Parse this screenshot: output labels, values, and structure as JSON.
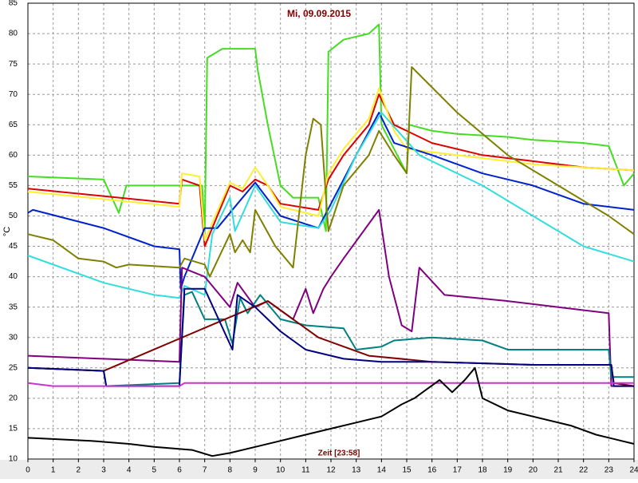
{
  "chart_data": {
    "type": "line",
    "title": "Mi, 09.09.2015",
    "y_label": "°C",
    "x_label": "Zeit [23:58]",
    "xlim": [
      0,
      24
    ],
    "xticks": [
      0,
      1,
      2,
      3,
      4,
      5,
      6,
      7,
      8,
      9,
      10,
      11,
      12,
      13,
      14,
      15,
      16,
      17,
      18,
      19,
      20,
      21,
      22,
      23,
      24
    ],
    "ylim": [
      10,
      85
    ],
    "yticks": [
      10,
      15,
      20,
      25,
      30,
      35,
      40,
      45,
      50,
      55,
      60,
      65,
      70,
      75,
      80,
      85
    ],
    "grid": true,
    "series": [
      {
        "color": "#44dd22",
        "x": [
          0,
          3,
          3.6,
          3.9,
          6,
          6.9,
          7,
          7.1,
          7.7,
          9,
          9.1,
          9.5,
          10,
          10.5,
          11.5,
          11.8,
          11.9,
          12.5,
          13.5,
          13.9,
          14,
          14.5,
          15,
          15.1,
          16,
          17,
          19,
          20,
          22,
          23,
          23.6,
          24
        ],
        "values": [
          56.5,
          56,
          50.5,
          55,
          55,
          55,
          47,
          76,
          77.5,
          77.5,
          74,
          65,
          55,
          53,
          53,
          47.5,
          77,
          79,
          80,
          81.5,
          65,
          61,
          57,
          65,
          64,
          63.5,
          63,
          62.5,
          62,
          61.5,
          55,
          57
        ]
      },
      {
        "color": "#dd0000",
        "x": [
          0,
          6,
          6.1,
          6.8,
          7,
          8,
          8.5,
          9,
          9.5,
          10,
          11.5,
          11.9,
          12.5,
          13.5,
          13.9,
          14.5,
          16,
          18,
          20,
          22,
          24
        ],
        "values": [
          54.5,
          52,
          56,
          55,
          45,
          55,
          54,
          56,
          55,
          52,
          51,
          56,
          60,
          65,
          70,
          65,
          62,
          60,
          59,
          58,
          57.5
        ]
      },
      {
        "color": "#ffee33",
        "x": [
          0,
          6,
          6.1,
          6.8,
          7,
          8,
          8.5,
          9,
          9.5,
          10,
          11.5,
          11.9,
          12.5,
          13.5,
          13.9,
          14.5,
          15,
          17,
          20,
          24
        ],
        "values": [
          54,
          51.5,
          57,
          56.5,
          46,
          55.5,
          54.5,
          58,
          55,
          51.5,
          50,
          57,
          61,
          66,
          71,
          64,
          61,
          60,
          58.5,
          57.5
        ]
      },
      {
        "color": "#0022cc",
        "x": [
          0,
          0.2,
          3,
          5,
          6,
          6.05,
          6.2,
          7,
          7.5,
          8.3,
          9,
          10,
          11.5,
          12,
          13,
          13.9,
          14.5,
          16,
          18,
          20,
          22,
          24
        ],
        "values": [
          50.5,
          51,
          48,
          45,
          44.5,
          38,
          40,
          48,
          48,
          52,
          55.5,
          50,
          48,
          52,
          60,
          67,
          62,
          60,
          57,
          55,
          52,
          51
        ]
      },
      {
        "color": "#33dddd",
        "x": [
          0,
          3,
          5,
          6,
          6.2,
          7,
          7.3,
          8,
          8.2,
          9,
          10,
          11.5,
          12,
          13,
          14,
          15.5,
          18,
          20,
          22,
          24
        ],
        "values": [
          43.5,
          39,
          37,
          36.5,
          38.5,
          37,
          47,
          53,
          47.5,
          55,
          49,
          48,
          51,
          60,
          67,
          60,
          55,
          50,
          45,
          42.5
        ]
      },
      {
        "color": "#808000",
        "x": [
          0,
          1,
          2,
          3,
          3.5,
          4,
          6,
          6.2,
          7,
          7.2,
          8,
          8.2,
          8.5,
          8.8,
          9,
          9.8,
          10.5,
          11,
          11.3,
          11.6,
          11.9,
          12.5,
          13.5,
          13.9,
          14.5,
          15,
          15.2,
          15.8,
          17,
          19,
          21,
          23,
          24
        ],
        "values": [
          47,
          46,
          43,
          42.5,
          41.5,
          42,
          41.5,
          43,
          42,
          40,
          47,
          44,
          46,
          44,
          51,
          45,
          41.5,
          60,
          66,
          65,
          47.5,
          55,
          60,
          64,
          60,
          57,
          74.5,
          72,
          67,
          60,
          55,
          50,
          47
        ]
      },
      {
        "color": "#800080",
        "x": [
          0,
          3,
          6,
          6.1,
          7,
          8,
          8.3,
          9,
          9.5,
          10.5,
          11,
          11.3,
          11.7,
          12,
          12.5,
          13.9,
          14.3,
          14.8,
          15.2,
          15.5,
          16.5,
          19,
          21,
          23,
          23.1,
          24
        ],
        "values": [
          27,
          26.5,
          26,
          41.5,
          40,
          35,
          39,
          35,
          36,
          33,
          38,
          34,
          38,
          40,
          43,
          51,
          40,
          32,
          31,
          41.5,
          37,
          36,
          35,
          34,
          22,
          22
        ]
      },
      {
        "color": "#008080",
        "x": [
          0,
          3,
          3.1,
          6,
          6.2,
          6.5,
          7,
          7.8,
          8.1,
          8.4,
          8.7,
          9.2,
          10,
          11,
          12.5,
          13,
          14,
          14.5,
          16,
          18,
          19,
          23,
          23.1,
          24
        ],
        "values": [
          25,
          24.5,
          22,
          22.5,
          37,
          37.5,
          33,
          33,
          29,
          36.5,
          34,
          37,
          33,
          32,
          31.5,
          28,
          28.5,
          29.5,
          30,
          29.5,
          28,
          28,
          23.5,
          23.5
        ]
      },
      {
        "color": "#800000",
        "x": [
          0,
          3,
          9.5,
          10.5,
          11.5,
          13.5,
          16,
          20,
          23.1,
          23.2,
          24
        ],
        "values": [
          25,
          24.5,
          36,
          33,
          30,
          27,
          26,
          25.5,
          25.5,
          22.5,
          22
        ]
      },
      {
        "color": "#000080",
        "x": [
          0,
          3,
          3.1,
          6,
          6.2,
          7,
          8.1,
          8.3,
          9,
          10,
          11,
          12.5,
          14,
          16,
          20,
          23.1,
          23.2,
          24
        ],
        "values": [
          25,
          24.5,
          22,
          22,
          38,
          38,
          28,
          37,
          35,
          31,
          28,
          26.5,
          26,
          26,
          25.5,
          25.5,
          22,
          22
        ]
      },
      {
        "color": "#cc33cc",
        "x": [
          0,
          1,
          6,
          6.2,
          24
        ],
        "values": [
          22.5,
          22,
          22,
          22.5,
          22.5
        ]
      },
      {
        "color": "#000000",
        "x": [
          0,
          2.5,
          4,
          5,
          6.5,
          7.3,
          8,
          9,
          10,
          11,
          12,
          13,
          14,
          14.8,
          15.3,
          15.8,
          16.3,
          16.8,
          17.3,
          17.7,
          18,
          19,
          20,
          21.5,
          22.5,
          23.5,
          24
        ],
        "values": [
          13.5,
          13,
          12.5,
          12,
          11.5,
          10.5,
          11,
          12,
          13,
          14,
          15,
          16,
          17,
          19,
          20,
          21.5,
          23,
          21,
          23,
          25,
          20,
          18,
          17,
          15.5,
          14,
          13,
          12.5
        ]
      }
    ]
  }
}
